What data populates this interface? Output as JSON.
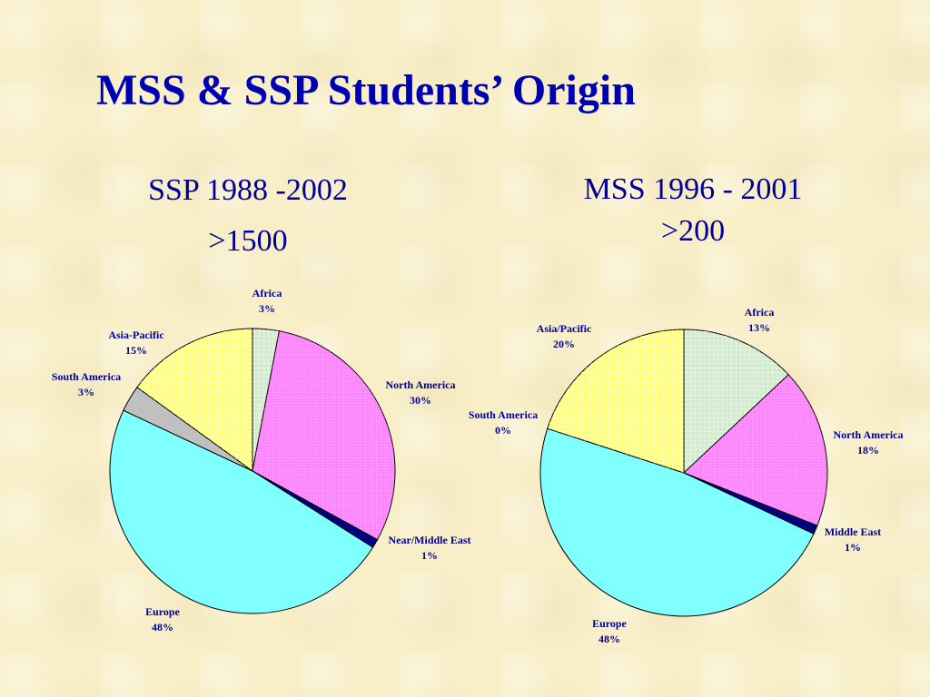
{
  "title": "MSS & SSP Students’ Origin",
  "chart_data": [
    {
      "type": "pie",
      "title": "SSP 1988 -2002",
      "subtitle": ">1500",
      "slices": [
        {
          "label": "Africa",
          "percent": 3,
          "display": "3%",
          "color": "#d4ebcf",
          "pattern": "grid"
        },
        {
          "label": "North America",
          "percent": 30,
          "display": "30%",
          "color": "#ff80ff",
          "pattern": "fine"
        },
        {
          "label": "Near/Middle East",
          "percent": 1,
          "display": "1%",
          "color": "#000080",
          "pattern": "none"
        },
        {
          "label": "Europe",
          "percent": 48,
          "display": "48%",
          "color": "#80ffff",
          "pattern": "none"
        },
        {
          "label": "South America",
          "percent": 3,
          "display": "3%",
          "color": "#c0c0c0",
          "pattern": "none"
        },
        {
          "label": "Asia-Pacific",
          "percent": 15,
          "display": "15%",
          "color": "#ffff80",
          "pattern": "grid"
        }
      ]
    },
    {
      "type": "pie",
      "title": "MSS 1996 - 2001",
      "subtitle": ">200",
      "slices": [
        {
          "label": "Africa",
          "percent": 13,
          "display": "13%",
          "color": "#d4ebcf",
          "pattern": "grid"
        },
        {
          "label": "North America",
          "percent": 18,
          "display": "18%",
          "color": "#ff80ff",
          "pattern": "fine"
        },
        {
          "label": "Middle East",
          "percent": 1,
          "display": "1%",
          "color": "#000080",
          "pattern": "none"
        },
        {
          "label": "Europe",
          "percent": 48,
          "display": "48%",
          "color": "#80ffff",
          "pattern": "none"
        },
        {
          "label": "South America",
          "percent": 0,
          "display": "0%",
          "color": "#c0c0c0",
          "pattern": "none"
        },
        {
          "label": "Asia/Pacific",
          "percent": 20,
          "display": "20%",
          "color": "#ffff80",
          "pattern": "grid"
        }
      ]
    }
  ]
}
